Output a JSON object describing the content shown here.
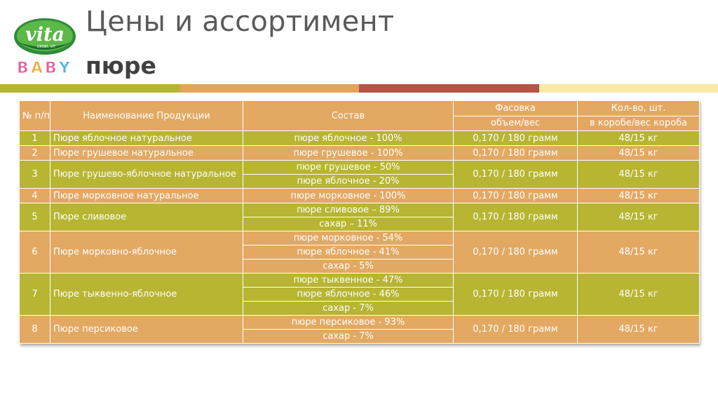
{
  "logo": {
    "brand": "vita",
    "tagline": "ORNEL VIT",
    "sub": "BABY"
  },
  "title": "Цены и ассортимент",
  "subtitle": "пюре",
  "colors": {
    "olive": "#b7b532",
    "orange": "#e3a862",
    "red": "#b65445",
    "pale": "#f7eba6"
  },
  "table": {
    "headers": {
      "num": "№ п/п",
      "name": "Наименование Продукции",
      "composition": "Состав",
      "packing": "Фасовка",
      "packing_sub": "объем/вес",
      "qty": "Кол-во, шт.",
      "qty_sub": "в коробе/вес короба"
    },
    "rows": [
      {
        "num": "1",
        "name": "Пюре яблочное натуральное",
        "composition": [
          "пюре яблочное - 100%"
        ],
        "packing": "0,170 / 180 грамм",
        "qty": "48/15 кг"
      },
      {
        "num": "2",
        "name": "Пюре грушевое натуральное",
        "composition": [
          "пюре грушевое - 100%"
        ],
        "packing": "0,170 / 180 грамм",
        "qty": "48/15 кг"
      },
      {
        "num": "3",
        "name": "Пюре грушево-яблочное натуральное",
        "composition": [
          "пюре грушевое - 50%",
          "пюре яблочное - 20%"
        ],
        "packing": "0,170 / 180 грамм",
        "qty": "48/15 кг"
      },
      {
        "num": "4",
        "name": "Пюре морковное натуральное",
        "composition": [
          "пюре морковное - 100%"
        ],
        "packing": "0,170 / 180 грамм",
        "qty": "48/15 кг"
      },
      {
        "num": "5",
        "name": "Пюре сливовое",
        "composition": [
          "пюре сливовое – 89%",
          "сахар – 11%"
        ],
        "packing": "0,170 / 180 грамм",
        "qty": "48/15 кг"
      },
      {
        "num": "6",
        "name": "Пюре морковно-яблочное",
        "composition": [
          "пюре морковное - 54%",
          "пюре яблочное - 41%",
          "сахар - 5%"
        ],
        "packing": "0,170 / 180 грамм",
        "qty": "48/15 кг"
      },
      {
        "num": "7",
        "name": "Пюре тыквенно-яблочное",
        "composition": [
          "пюре тыквенное - 47%",
          "пюре яблочное - 46%",
          "сахар - 7%"
        ],
        "packing": "0,170 / 180 грамм",
        "qty": "48/15 кг"
      },
      {
        "num": "8",
        "name": "Пюре персиковое",
        "composition": [
          "пюре персиковое - 93%",
          "сахар - 7%"
        ],
        "packing": "0,170 / 180 грамм",
        "qty": "48/15 кг"
      }
    ]
  }
}
